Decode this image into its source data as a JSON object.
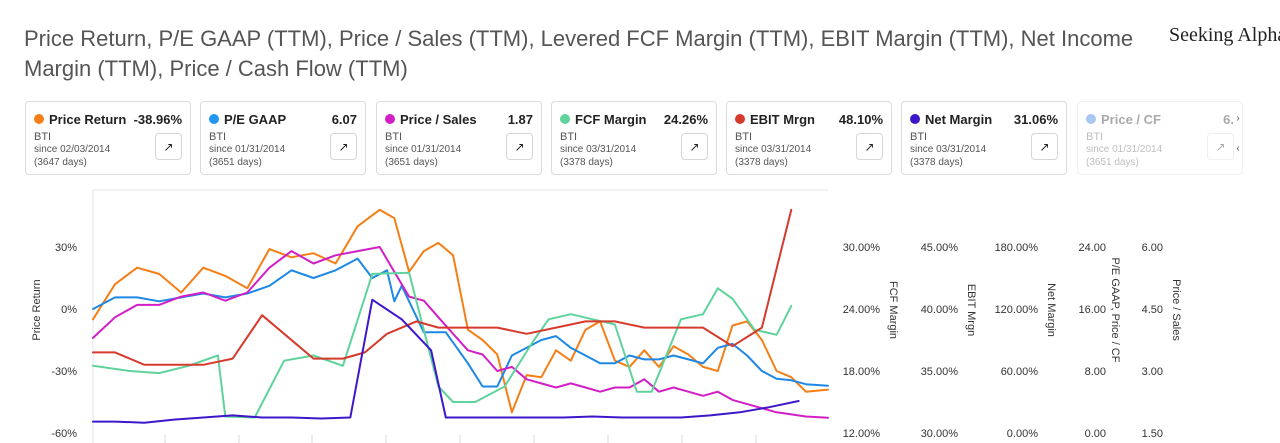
{
  "title": "Price Return, P/E GAAP (TTM), Price / Sales (TTM), Levered FCF Margin (TTM), EBIT Margin (TTM), Net Income Margin (TTM), Price / Cash Flow (TTM)",
  "brand": "Seeking Alpha",
  "nav": {
    "next_icon": "›",
    "prev_icon": "‹"
  },
  "cards": [
    {
      "name": "Price Return",
      "value": "-38.96%",
      "ticker": "BTI",
      "since": "since 02/03/2014",
      "days": "(3647 days)",
      "color": "#f57f17",
      "faded": false
    },
    {
      "name": "P/E GAAP",
      "value": "6.07",
      "ticker": "BTI",
      "since": "since 01/31/2014",
      "days": "(3651 days)",
      "color": "#2196f3",
      "faded": false
    },
    {
      "name": "Price / Sales",
      "value": "1.87",
      "ticker": "BTI",
      "since": "since 01/31/2014",
      "days": "(3651 days)",
      "color": "#d21fc5",
      "faded": false
    },
    {
      "name": "FCF Margin",
      "value": "24.26%",
      "ticker": "BTI",
      "since": "since 03/31/2014",
      "days": "(3378 days)",
      "color": "#5fd39b",
      "faded": false
    },
    {
      "name": "EBIT Mrgn",
      "value": "48.10%",
      "ticker": "BTI",
      "since": "since 03/31/2014",
      "days": "(3378 days)",
      "color": "#d63a2c",
      "faded": false
    },
    {
      "name": "Net Margin",
      "value": "31.06%",
      "ticker": "BTI",
      "since": "since 03/31/2014",
      "days": "(3378 days)",
      "color": "#3d17c9",
      "faded": false
    },
    {
      "name": "Price / CF",
      "value": "6.",
      "ticker": "BTI",
      "since": "since 01/31/2014",
      "days": "(3651 days)",
      "color": "#1e6fdc",
      "faded": true
    }
  ],
  "chart_data": {
    "type": "line",
    "x_range": [
      0,
      100
    ],
    "grid": true,
    "axes": [
      {
        "id": "price_return",
        "title": "Price Return",
        "side": "left",
        "ticks": [
          "30%",
          "0%",
          "-30%",
          "-60%"
        ],
        "range": [
          -60,
          30
        ]
      },
      {
        "id": "fcf_margin",
        "title": "FCF Margin",
        "side": "right",
        "ticks": [
          "30.00%",
          "24.00%",
          "18.00%",
          "12.00%"
        ],
        "range": [
          12,
          30
        ]
      },
      {
        "id": "ebit_margin",
        "title": "EBIT Mrgn",
        "side": "right",
        "ticks": [
          "45.00%",
          "40.00%",
          "35.00%",
          "30.00%"
        ],
        "range": [
          30,
          45
        ]
      },
      {
        "id": "net_margin",
        "title": "Net Margin",
        "side": "right",
        "ticks": [
          "180.00%",
          "120.00%",
          "60.00%",
          "0.00%"
        ],
        "range": [
          0,
          180
        ]
      },
      {
        "id": "pe_pcf",
        "title": "P/E GAAP, Price / CF",
        "side": "right",
        "ticks": [
          "24.00",
          "16.00",
          "8.00",
          "0.00"
        ],
        "range": [
          0,
          24
        ]
      },
      {
        "id": "price_sales",
        "title": "Price / Sales",
        "side": "right",
        "ticks": [
          "6.00",
          "4.50",
          "3.00",
          "1.50"
        ],
        "range": [
          1.5,
          6
        ]
      }
    ],
    "series": [
      {
        "name": "Price Return",
        "axis": "price_return",
        "color": "#f57f17",
        "x": [
          0,
          3,
          6,
          9,
          12,
          15,
          18,
          21,
          24,
          27,
          30,
          33,
          36,
          39,
          41,
          43,
          45,
          47,
          49,
          51,
          53,
          55,
          57,
          59,
          61,
          63,
          65,
          67,
          69,
          71,
          73,
          75,
          77,
          79,
          81,
          83,
          85,
          87,
          89,
          91,
          93,
          95,
          97,
          100
        ],
        "y": [
          -5,
          12,
          20,
          17,
          8,
          20,
          16,
          10,
          29,
          25,
          27,
          22,
          40,
          48,
          44,
          18,
          28,
          32,
          26,
          -10,
          -15,
          -22,
          -50,
          -32,
          -33,
          -20,
          -25,
          -10,
          -6,
          -25,
          -28,
          -20,
          -28,
          -18,
          -22,
          -28,
          -30,
          -8,
          -6,
          -15,
          -30,
          -33,
          -40,
          -39
        ]
      },
      {
        "name": "P/E GAAP",
        "axis": "pe_pcf",
        "color": "#1e88e5",
        "x": [
          0,
          3,
          6,
          9,
          12,
          15,
          18,
          21,
          24,
          27,
          30,
          33,
          36,
          38,
          40,
          41,
          42,
          45,
          48,
          51,
          53,
          55,
          57,
          59,
          61,
          63,
          65,
          67,
          69,
          71,
          73,
          75,
          77,
          79,
          81,
          83,
          85,
          87,
          89,
          91,
          93,
          95,
          97,
          100
        ],
        "y": [
          16,
          17.5,
          17.5,
          17,
          17.5,
          18,
          17.5,
          18,
          19,
          21,
          20,
          21,
          22.5,
          20,
          21,
          17,
          19,
          13,
          13,
          9,
          6,
          6,
          10,
          11,
          12,
          12.5,
          11,
          10,
          9,
          9,
          10,
          9.5,
          9.5,
          10,
          9.5,
          9,
          11,
          11.5,
          10,
          8,
          7,
          6.8,
          6.3,
          6.1
        ]
      },
      {
        "name": "Price / Sales",
        "axis": "price_sales",
        "color": "#d21fc5",
        "x": [
          0,
          3,
          6,
          9,
          12,
          15,
          18,
          21,
          24,
          27,
          30,
          33,
          36,
          39,
          41,
          43,
          45,
          47,
          49,
          51,
          53,
          55,
          57,
          59,
          61,
          63,
          65,
          67,
          69,
          71,
          73,
          75,
          77,
          79,
          81,
          83,
          85,
          87,
          89,
          91,
          93,
          95,
          97,
          100
        ],
        "y": [
          3.8,
          4.3,
          4.6,
          4.6,
          4.8,
          4.9,
          4.7,
          4.9,
          5.5,
          5.9,
          5.6,
          5.8,
          5.9,
          6.0,
          5.4,
          4.8,
          4.7,
          4.3,
          3.9,
          3.5,
          3.4,
          3.0,
          3.1,
          2.8,
          2.7,
          2.6,
          2.7,
          2.6,
          2.5,
          2.6,
          2.6,
          2.8,
          2.5,
          2.6,
          2.5,
          2.4,
          2.5,
          2.3,
          2.2,
          2.1,
          2.0,
          1.95,
          1.9,
          1.87
        ]
      },
      {
        "name": "FCF Margin",
        "axis": "fcf_margin",
        "color": "#5fd39b",
        "x": [
          0,
          5,
          9,
          13,
          17,
          18,
          22,
          26,
          30,
          34,
          38,
          43,
          47,
          49,
          52,
          56,
          60,
          62,
          65,
          68,
          71,
          74,
          76,
          80,
          83,
          85,
          87,
          90,
          93,
          95
        ],
        "y": [
          18.5,
          18,
          17.8,
          18.5,
          19.5,
          13.6,
          13.5,
          19,
          19.5,
          18.5,
          27.4,
          27.5,
          16.5,
          15,
          15,
          16.5,
          21,
          23,
          23.5,
          23,
          22.5,
          16,
          16,
          23,
          23.5,
          26,
          25,
          22,
          21.5,
          24.3
        ]
      },
      {
        "name": "EBIT Mrgn",
        "axis": "ebit_margin",
        "color": "#d63a2c",
        "x": [
          0,
          3,
          7,
          11,
          15,
          19,
          23,
          26,
          30,
          34,
          37,
          40,
          44,
          47,
          51,
          55,
          59,
          63,
          67,
          71,
          75,
          79,
          83,
          87,
          91,
          95
        ],
        "y": [
          36.5,
          36.5,
          35.5,
          35.5,
          35.5,
          36,
          39.5,
          38,
          36,
          36,
          36.5,
          38,
          39,
          38.5,
          38.5,
          38.5,
          38,
          38.5,
          39,
          39,
          38.5,
          38.5,
          38.5,
          37,
          38.5,
          48
        ]
      },
      {
        "name": "Net Margin",
        "axis": "net_margin",
        "color": "#3d17c9",
        "x": [
          0,
          3,
          7,
          11,
          15,
          19,
          23,
          27,
          31,
          35,
          38,
          42,
          46,
          48,
          52,
          56,
          60,
          64,
          68,
          72,
          76,
          80,
          84,
          88,
          92,
          96
        ],
        "y": [
          11,
          11,
          10,
          13,
          15,
          17,
          15,
          15,
          14,
          15,
          129,
          110,
          80,
          15,
          15,
          15,
          15,
          15,
          16,
          15,
          15,
          15,
          17,
          20,
          25,
          31
        ]
      }
    ]
  }
}
